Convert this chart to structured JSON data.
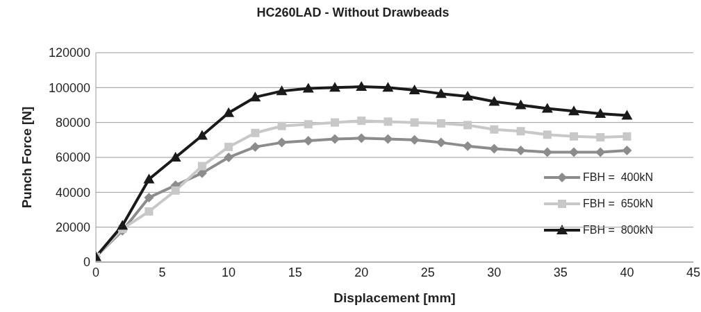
{
  "chart_data": {
    "type": "line",
    "title": "HC260LAD - Without Drawbeads",
    "xlabel": "Displacement [mm]",
    "ylabel": "Punch Force [N]",
    "x": [
      0,
      2,
      4,
      6,
      8,
      10,
      12,
      14,
      16,
      18,
      20,
      22,
      24,
      26,
      28,
      30,
      32,
      34,
      36,
      38,
      40
    ],
    "series": [
      {
        "name": "FBH =  400kN",
        "color": "#8c8c8c",
        "marker": "diamond",
        "values": [
          3000,
          18000,
          37000,
          44000,
          51000,
          60000,
          66000,
          68500,
          69500,
          70500,
          71000,
          70500,
          70000,
          68500,
          66500,
          65000,
          64000,
          63000,
          63000,
          63000,
          64000
        ]
      },
      {
        "name": "FBH =  650kN",
        "color": "#c8c8c8",
        "marker": "square",
        "values": [
          3000,
          19000,
          29000,
          41000,
          55000,
          66000,
          74000,
          78000,
          79000,
          80000,
          81000,
          80500,
          80000,
          79500,
          78500,
          76000,
          75000,
          73000,
          72000,
          71500,
          72000
        ]
      },
      {
        "name": "FBH =  800kN",
        "color": "#1a1a1a",
        "marker": "triangle",
        "values": [
          3000,
          21000,
          47500,
          60000,
          72500,
          85500,
          94500,
          98000,
          99500,
          100000,
          100500,
          100000,
          98500,
          96500,
          95000,
          92000,
          90000,
          88000,
          86500,
          85000,
          84000
        ]
      }
    ],
    "xlim": [
      0,
      45
    ],
    "xticks": [
      0,
      5,
      10,
      15,
      20,
      25,
      30,
      35,
      40,
      45
    ],
    "ylim": [
      0,
      120000
    ],
    "yticks": [
      0,
      20000,
      40000,
      60000,
      80000,
      100000,
      120000
    ],
    "grid": "y",
    "legend": "right",
    "line_style": "solid"
  }
}
